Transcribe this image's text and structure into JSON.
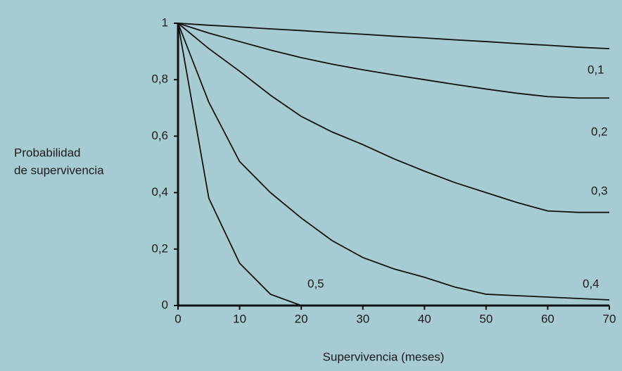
{
  "chart_data": {
    "type": "line",
    "x": [
      0,
      5,
      10,
      15,
      20,
      25,
      30,
      35,
      40,
      45,
      50,
      55,
      60,
      65,
      70
    ],
    "series": [
      {
        "name": "0,1",
        "color": "#111111",
        "values": [
          1,
          0.993,
          0.987,
          0.98,
          0.974,
          0.967,
          0.961,
          0.954,
          0.948,
          0.941,
          0.935,
          0.928,
          0.922,
          0.915,
          0.91
        ]
      },
      {
        "name": "0,2",
        "color": "#111111",
        "values": [
          1,
          0.965,
          0.935,
          0.905,
          0.878,
          0.855,
          0.835,
          0.817,
          0.8,
          0.783,
          0.767,
          0.752,
          0.74,
          0.735,
          0.735
        ]
      },
      {
        "name": "0,3",
        "color": "#111111",
        "values": [
          1,
          0.91,
          0.83,
          0.745,
          0.67,
          0.615,
          0.57,
          0.52,
          0.476,
          0.435,
          0.4,
          0.365,
          0.335,
          0.33,
          0.33
        ]
      },
      {
        "name": "0,4",
        "color": "#111111",
        "values": [
          1,
          0.72,
          0.51,
          0.4,
          0.31,
          0.23,
          0.17,
          0.13,
          0.1,
          0.065,
          0.04,
          0.035,
          0.03,
          0.025,
          0.02
        ]
      },
      {
        "name": "0,5",
        "color": "#111111",
        "values": [
          1,
          0.38,
          0.15,
          0.04,
          0,
          null,
          null,
          null,
          null,
          null,
          null,
          null,
          null,
          null,
          null
        ]
      }
    ],
    "x_label": "Supervivencia (meses)",
    "y_label": [
      "Probabilidad",
      "de supervivencia"
    ],
    "xlim": [
      0,
      70
    ],
    "xticks": [
      0,
      10,
      20,
      30,
      40,
      50,
      60,
      70
    ],
    "ylim": [
      0,
      1
    ],
    "yticks": [
      0,
      {
        "value": 0.2,
        "label": "0,2"
      },
      {
        "value": 0.4,
        "label": "0,4"
      },
      {
        "value": 0.6,
        "label": "0,6"
      },
      {
        "value": 0.8,
        "label": "0,8"
      },
      1
    ],
    "grid": false
  }
}
